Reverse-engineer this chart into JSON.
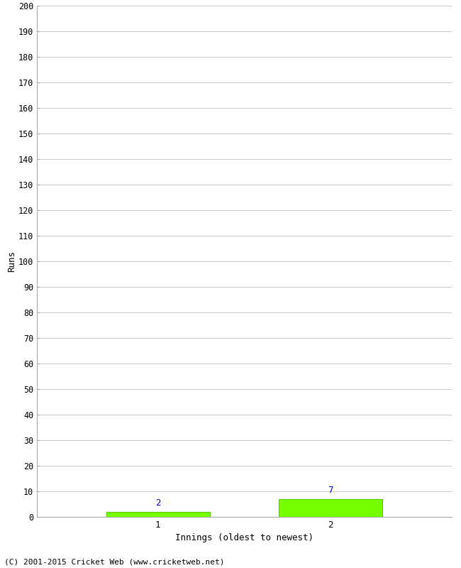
{
  "categories": [
    1,
    2
  ],
  "values": [
    2,
    7
  ],
  "bar_color": "#77ff00",
  "bar_edge_color": "#55cc00",
  "xlabel": "Innings (oldest to newest)",
  "ylabel": "Runs",
  "ylim": [
    0,
    200
  ],
  "ytick_step": 10,
  "value_label_color": "#0000cc",
  "background_color": "#ffffff",
  "grid_color": "#cccccc",
  "footer": "(C) 2001-2015 Cricket Web (www.cricketweb.net)"
}
